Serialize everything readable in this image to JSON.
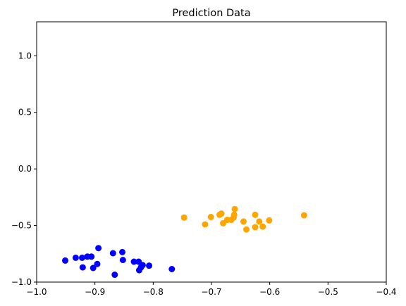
{
  "chart_data": {
    "type": "scatter",
    "title": "Prediction Data",
    "xlabel": "",
    "ylabel": "",
    "xlim": [
      -1.0,
      -0.4
    ],
    "ylim": [
      -1.0,
      1.3
    ],
    "grid": false,
    "legend": "none",
    "x_ticks": [
      -1.0,
      -0.9,
      -0.8,
      -0.7,
      -0.6,
      -0.5,
      -0.4
    ],
    "x_tick_labels": [
      "−1.0",
      "−0.9",
      "−0.8",
      "−0.7",
      "−0.6",
      "−0.5",
      "−0.4"
    ],
    "y_ticks": [
      -1.0,
      -0.5,
      0.0,
      0.5,
      1.0
    ],
    "y_tick_labels": [
      "−1.0",
      "−0.5",
      "0.0",
      "0.5",
      "1.0"
    ],
    "series": [
      {
        "color": "#0000ff",
        "points": [
          [
            -0.951,
            -0.81
          ],
          [
            -0.933,
            -0.785
          ],
          [
            -0.922,
            -0.785
          ],
          [
            -0.921,
            -0.87
          ],
          [
            -0.913,
            -0.775
          ],
          [
            -0.906,
            -0.775
          ],
          [
            -0.903,
            -0.875
          ],
          [
            -0.896,
            -0.84
          ],
          [
            -0.894,
            -0.7
          ],
          [
            -0.869,
            -0.745
          ],
          [
            -0.866,
            -0.935
          ],
          [
            -0.853,
            -0.735
          ],
          [
            -0.852,
            -0.805
          ],
          [
            -0.833,
            -0.82
          ],
          [
            -0.825,
            -0.82
          ],
          [
            -0.824,
            -0.895
          ],
          [
            -0.821,
            -0.87
          ],
          [
            -0.818,
            -0.85
          ],
          [
            -0.807,
            -0.855
          ],
          [
            -0.768,
            -0.885
          ]
        ]
      },
      {
        "color": "#ffa500",
        "points": [
          [
            -0.747,
            -0.43
          ],
          [
            -0.711,
            -0.49
          ],
          [
            -0.701,
            -0.425
          ],
          [
            -0.686,
            -0.405
          ],
          [
            -0.683,
            -0.395
          ],
          [
            -0.68,
            -0.48
          ],
          [
            -0.673,
            -0.45
          ],
          [
            -0.666,
            -0.45
          ],
          [
            -0.662,
            -0.43
          ],
          [
            -0.661,
            -0.405
          ],
          [
            -0.66,
            -0.355
          ],
          [
            -0.645,
            -0.465
          ],
          [
            -0.64,
            -0.535
          ],
          [
            -0.625,
            -0.405
          ],
          [
            -0.625,
            -0.515
          ],
          [
            -0.618,
            -0.465
          ],
          [
            -0.612,
            -0.51
          ],
          [
            -0.601,
            -0.455
          ],
          [
            -0.541,
            -0.41
          ]
        ]
      }
    ]
  }
}
